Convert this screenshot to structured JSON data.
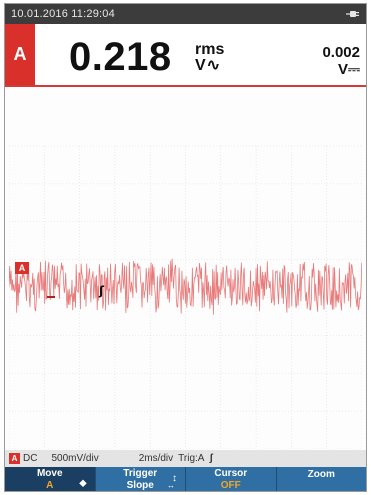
{
  "status": {
    "datetime": "10.01.2016 11:29:04",
    "power_icon": "plug-icon"
  },
  "readout": {
    "channel": "A",
    "main_value": "0.218",
    "main_unit_top": "rms",
    "main_unit_bottom": "V",
    "main_unit_symbol": "∿",
    "secondary_value": "0.002",
    "secondary_unit": "V",
    "secondary_unit_symbol": "⎓"
  },
  "scope": {
    "channel_marker": "A",
    "trace_color": "#e87a7a",
    "grid_divisions_x": 10,
    "grid_divisions_y": 8,
    "trigger_marker": "ʃ"
  },
  "info": {
    "channel": "A",
    "coupling": "DC",
    "volts_per_div": "500mV/div",
    "time_per_div": "2ms/div",
    "trigger": "Trig:A",
    "trigger_slope_icon": "ʃ"
  },
  "softkeys": [
    {
      "line1": "Move",
      "line2": "A",
      "icon": "⬥"
    },
    {
      "line1": "Trigger",
      "line2": "Slope",
      "icon": "↕",
      "icon2": "↔"
    },
    {
      "line1": "Cursor",
      "line2": "OFF"
    },
    {
      "line1": "Zoom",
      "line2": ""
    }
  ],
  "colors": {
    "accent_red": "#d9302c",
    "softkey_blue": "#2f6fa3",
    "softkey_active": "#1a3f63",
    "highlight_orange": "#f5a623"
  }
}
